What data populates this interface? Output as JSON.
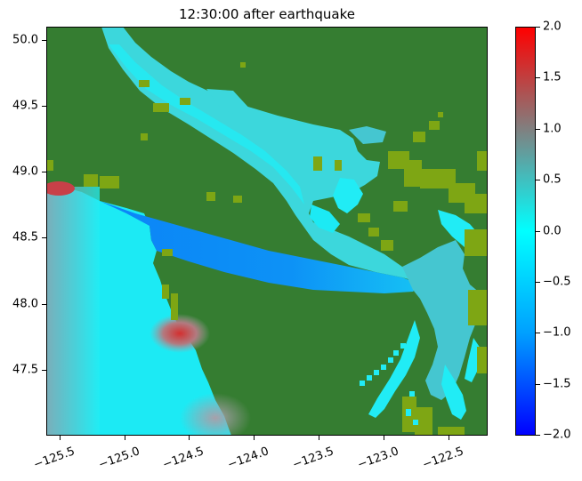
{
  "title": "12:30:00 after earthquake",
  "map": {
    "x_range": [
      -125.6,
      -122.2
    ],
    "y_range": [
      47.0,
      50.1
    ],
    "x_ticks": [
      {
        "value": -125.5,
        "label": "−125.5"
      },
      {
        "value": -125.0,
        "label": "−125.0"
      },
      {
        "value": -124.5,
        "label": "−124.5"
      },
      {
        "value": -124.0,
        "label": "−124.0"
      },
      {
        "value": -123.5,
        "label": "−123.5"
      },
      {
        "value": -123.0,
        "label": "−123.0"
      },
      {
        "value": -122.5,
        "label": "−122.5"
      }
    ],
    "y_ticks": [
      {
        "value": 47.5,
        "label": "47.5"
      },
      {
        "value": 48.0,
        "label": "48.0"
      },
      {
        "value": 48.5,
        "label": "48.5"
      },
      {
        "value": 49.0,
        "label": "49.0"
      },
      {
        "value": 49.5,
        "label": "49.5"
      },
      {
        "value": 50.0,
        "label": "50.0"
      }
    ],
    "colors": {
      "land": "#357d31",
      "shore": "#7ea614",
      "ocean": "#1ceaf4",
      "strait": "#0c8ef7",
      "strait_of_georgia": "#3cd7dc",
      "puget_sound": "#45c6d0",
      "high_anomaly": "#d03a3a",
      "moderate_anomaly": "#a99aa8"
    }
  },
  "colorbar": {
    "min": -2.0,
    "max": 2.0,
    "colors": [
      "#0000ff",
      "#00a0ff",
      "#00ffff",
      "#808080",
      "#ff0000"
    ],
    "ticks": [
      {
        "value": 2.0,
        "label": "2.0"
      },
      {
        "value": 1.5,
        "label": "1.5"
      },
      {
        "value": 1.0,
        "label": "1.0"
      },
      {
        "value": 0.5,
        "label": "0.5"
      },
      {
        "value": 0.0,
        "label": "0.0"
      },
      {
        "value": -0.5,
        "label": "−0.5"
      },
      {
        "value": -1.0,
        "label": "−1.0"
      },
      {
        "value": -1.5,
        "label": "−1.5"
      },
      {
        "value": -2.0,
        "label": "−2.0"
      }
    ]
  }
}
